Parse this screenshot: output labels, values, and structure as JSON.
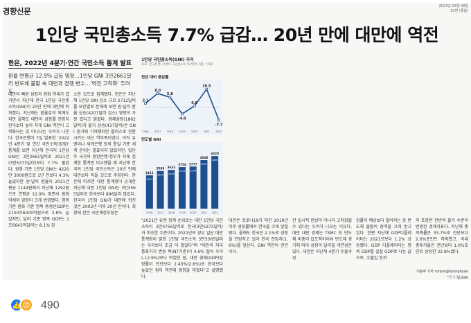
{
  "paper": {
    "masthead": "경향신문",
    "dateline": [
      "2023년 03월 08일",
      "02면 (종합)"
    ],
    "headline": "1인당 국민총소득 7.7% 급감… 20년 만에 대만에 역전",
    "subhead": "한은, 2022년 4분기·연간 국민소득 통계 발표",
    "deck": "환율 연평균 12.9% 급등 영향…1인당 GNI 3만2661달러 반도체 불황 속 대만과 경쟁 변수…'역전 고착화' 우려도",
    "col1": "대만의 빠른 성장과 원화 약세가 겹치면서 지난해 한국 1인당 국민총소득(GNI)이 20년 만에 대만에 뒤처졌다. 지난해는 환율효과 외에도 지만 올해도 대만이 성장률 전망치 한국보다 높아 지게 GNI 역전이 고착화되는 것 아니냐는 우려가 나온다. 한국은행이 7일 발표한 '2022년 4분기 및 연간 국민소득(잠정)' 통계를 보면 지난해 한국의 1인당 GNI는 3만2661달러로 2021년(3만5373달러)보다 7.7% 줄었다. 원화 기준 1인당 GNI는 4220만 3000원으로 1년 전보다 4.3% 늘었지만 원·달러 환율이 2021년 평균 1144원에서 지난해 1292원으로 연평균 12.9% 뛰면서 원화 약세의 영향이 크게 반영됐다. 명목기준 원화 기준 명목 총생산GDP는 2150조6000억원으로 3.8% 늘었지만, 달러 기준 명목 GDP는 1조6643억달러는 8.1% 감",
    "col2": "소한 것으로 집계됐다. 한은은 지난해 1인당 GNI 감소 규모 2712달러를 요인별로 분해해 보면 원·달러 환율 상승(4207달러 감소) 영향이 가장 컸다고 밝혔다. 경제성장(1862달러)과 물가 상승(437달러)은 GNI 증가에 기여했지만 플러스로 전환시키는 데는 역부족이었다. 아직 유엔이나 세계은행 등의 통일 기준 세계 순위는 발표되지 않았지만, 일단 주 국가의 중앙은행·정부가 자체 집계한 통계만 비교했을 때 지난해 한국의 1인당 국민소득은 20년 만에 대만보다 적을 것으로 추정된다. 한은에 따르면 대만 통계청이 공개한 지난해 대만 1인당 GNI는 3만3565달러로 한국보다 896달러 많았다. 한국의 1인당 GNI가 대만에 뒤진 것은 2002년 이후 20년 만이다. 최창태 한은 국민계정부장은",
    "col3": "\"2021년 유엔 집계 순위로는 대만 1인당 국민소득이 3만4756달러로 한국(3만5373달러)과 비슷한 수준이다. 2022년의 경우 일단 대만 통계청이 밝힌 1인당 국민소득 3만3565달러는 우리보다 조금 더 많았다\"며 \"대만의 자국 통화가치 변동 폭(NT기준)이 4.6% 떨어 우리(-12.9%)보다 적었던 점, 대만 경제(GDP)성장률이 전년보다 2.45%(2.6%)로 한국보다 높았던 점이 역전에 영향을 미쳤다\"고 설명했다.",
    "col4": "대만은 코로나19가 퍼진 2019년 이후 성장률에서 한국을 크게 앞질렀다. 올해도 한국은 2.1%로 성장을 전망하고 있어 한국 전망치(1.6%)를 앞선다. GNI 역전이 관건이다.",
    "col5": "한 일시적 현상이 아니라 고착화될 수 있다는 우려가 나오는 이유다. 대만 대만 경제는 TSMC 등 반도체 비중이 압도적이어서 반도체 경기에 따라 성장이 달라질 개연성은 있다. 대만은 지난해 4분기 수출과 성",
    "col6": "장률이 예상보다 떨어지는 등 반도체 불황의 충격을 크게 받고 있다. 한편 지난해 GDP디플레이터는 2021년보다 1.2% 상승했다. GDP 디플레이터는 명목 GDP를 실질 GDP로 나눈 값으로, 수출입 등까",
    "col7": "지 포함한 전반적 물가 수준이 반영된 경제지표다. 지난해 총저축률은 33.7%로 전년보다 2.6%포인트 하락했고, 국내 총투자율은 전년보다 1.0%포인트 상승한 32.8%였다.",
    "byline": "이윤주 기자 runjoo@kyunghyang.com",
    "credit": "이진니/17.0cm"
  },
  "chart_data": [
    {
      "type": "line",
      "title": "1인당 국민총소득(GNI) 추이",
      "source": "자료: 한국은행, ※명목 국민총소득 %/달러 기준, *자료",
      "section_label": "전년 대비 증감률",
      "x": [
        "2016",
        "2017",
        "2018",
        "2019",
        "2020",
        "2021",
        "2022"
      ],
      "values": [
        2.1,
        8.0,
        5.8,
        -4.0,
        0.6,
        10.5,
        -7.7
      ],
      "value_labels": [
        "2.1",
        "8.0",
        "5.8",
        "-4.0",
        "0.6",
        "10.5",
        "-7.7"
      ],
      "unit": "단위: %"
    },
    {
      "type": "bar",
      "section_label": "연도별 GNI",
      "categories": [
        "2016",
        "2017",
        "2018",
        "2019",
        "2020",
        "2021",
        "2022"
      ],
      "values": [
        3411,
        3589,
        3633,
        3754,
        3777,
        4048,
        4220
      ],
      "secondary_values": [
        2947,
        3253,
        3444,
        3312,
        3276,
        3537,
        3266
      ],
      "unit": "단위: 만원 / 원·달러"
    }
  ],
  "reactions": {
    "like_icon_label": "👍",
    "angry_icon_label": "😡",
    "count": "490"
  },
  "colors": {
    "chart_line": "#1d4f8f",
    "chart_bar": "#1d4f8f",
    "chart_bg": "#eef3fa"
  }
}
